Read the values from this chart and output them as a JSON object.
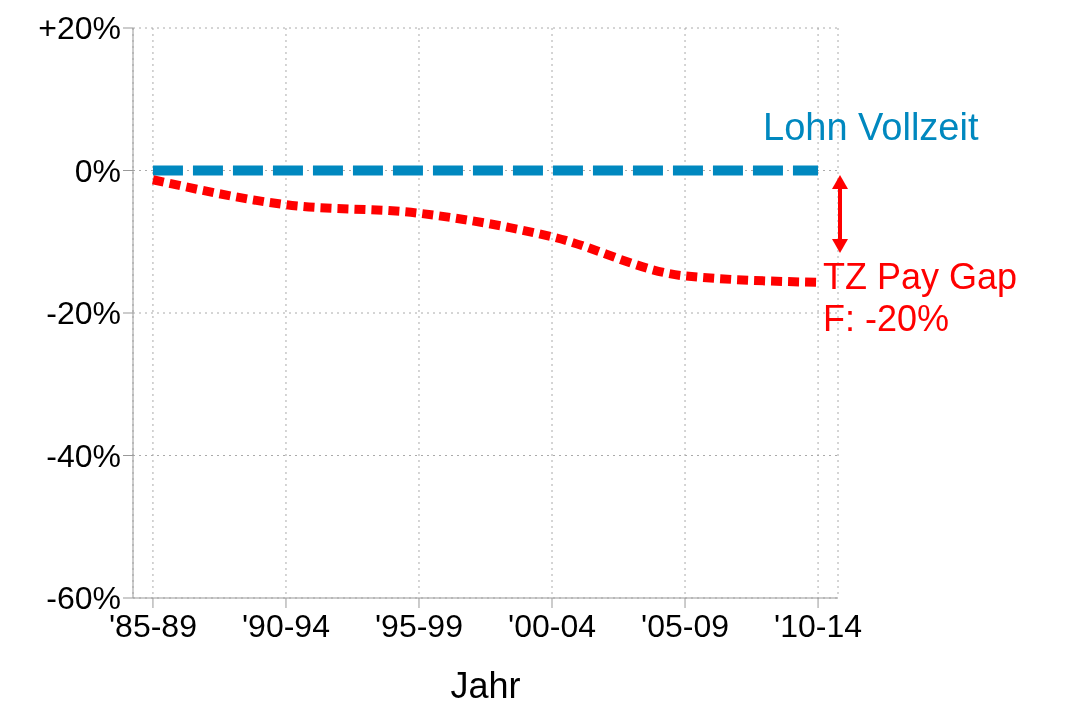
{
  "chart_data": {
    "type": "line",
    "xlabel": "Jahr",
    "categories": [
      "'85-89",
      "'90-94",
      "'95-99",
      "'00-04",
      "'05-09",
      "'10-14"
    ],
    "series": [
      {
        "name": "Lohn Vollzeit",
        "color": "#0088bf",
        "values": [
          0,
          0,
          0,
          0,
          0,
          0
        ],
        "line_style": "dashed"
      },
      {
        "color": "#ff0000",
        "values": [
          -1.3,
          -4.8,
          -6,
          -9.3,
          -14.8,
          -15.7
        ],
        "line_style": "dotted"
      }
    ],
    "ylim": [
      -60,
      20
    ],
    "yticks": [
      {
        "value": -60,
        "label": "-60%"
      },
      {
        "value": -40,
        "label": "-40%"
      },
      {
        "value": -20,
        "label": "-20%"
      },
      {
        "value": 0,
        "label": "0%"
      },
      {
        "value": 20,
        "label": "+20%"
      }
    ],
    "grid": true,
    "marker": "none",
    "annotations": [
      "TZ Pay Gap F: -20%"
    ]
  }
}
